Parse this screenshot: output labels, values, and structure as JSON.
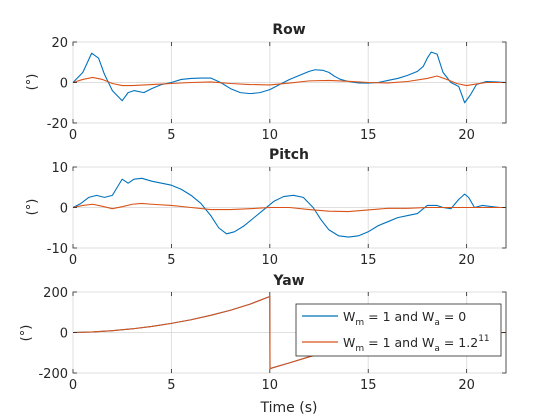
{
  "figure": {
    "xlabel": "Time (s)"
  },
  "colors": {
    "series1": "#0072BD",
    "series2": "#D95319"
  },
  "legend": {
    "placement": "right",
    "entries": [
      {
        "base": "W",
        "sub1": "m",
        "mid": " = 1 and W",
        "sub2": "a",
        "tail": " = 0"
      },
      {
        "base": "W",
        "sub1": "m",
        "mid": " = 1 and W",
        "sub2": "a",
        "tail": " = 1.2",
        "sup": "11"
      }
    ]
  },
  "chart_data": [
    {
      "type": "line",
      "title": "Row",
      "ylabel": "(°)",
      "xlim": [
        0,
        22
      ],
      "ylim": [
        -20,
        20
      ],
      "xticks": [
        0,
        5,
        10,
        15,
        20
      ],
      "yticks": [
        -20,
        0,
        20
      ],
      "grid": true,
      "series": [
        {
          "x": [
            0,
            0.5,
            0.95,
            1.3,
            1.6,
            2.0,
            2.5,
            2.8,
            3.1,
            3.6,
            4.0,
            4.5,
            5.0,
            5.5,
            6.0,
            6.5,
            7.0,
            7.5,
            8.0,
            8.5,
            9.0,
            9.5,
            10.0,
            10.5,
            11.0,
            11.5,
            12.0,
            12.3,
            12.7,
            13.0,
            13.3,
            13.6,
            14.0,
            14.5,
            15.0,
            15.5,
            16.0,
            16.5,
            17.0,
            17.5,
            17.8,
            18.0,
            18.2,
            18.5,
            18.8,
            19.2,
            19.6,
            19.9,
            20.2,
            20.5,
            21.0,
            21.5,
            22.0
          ],
          "values": [
            0,
            5,
            14.5,
            12,
            4,
            -4,
            -9,
            -5,
            -4,
            -5,
            -3,
            -1,
            0,
            1.5,
            2,
            2.2,
            2.2,
            0,
            -3,
            -5,
            -5.5,
            -5,
            -3.5,
            -1,
            1.5,
            3.5,
            5.5,
            6.3,
            6,
            5,
            3,
            1.5,
            0.5,
            -0.2,
            -0.3,
            0,
            1,
            2,
            3.5,
            5.5,
            8,
            12,
            15,
            14,
            5,
            0,
            -2,
            -10,
            -6,
            -1,
            0.5,
            0.3,
            0
          ]
        },
        {
          "x": [
            0,
            0.5,
            1.0,
            1.5,
            2.0,
            2.5,
            3.0,
            4.0,
            5.0,
            6.0,
            7.0,
            8.0,
            9.0,
            10.0,
            11.0,
            12.0,
            13.0,
            14.0,
            15.0,
            16.0,
            17.0,
            18.0,
            18.5,
            19.0,
            19.5,
            20.0,
            20.5,
            21.0,
            22.0
          ],
          "values": [
            0,
            1.5,
            2.5,
            1.5,
            -0.5,
            -1.5,
            -1.5,
            -1,
            -0.5,
            0,
            0.3,
            -0.5,
            -1,
            -1.2,
            -0.3,
            0.8,
            1,
            0.6,
            0,
            -0.2,
            0.5,
            2,
            3.2,
            1.5,
            -0.5,
            -1.5,
            -0.7,
            0,
            0
          ]
        }
      ]
    },
    {
      "type": "line",
      "title": "Pitch",
      "ylabel": "(°)",
      "xlim": [
        0,
        22
      ],
      "ylim": [
        -10,
        10
      ],
      "xticks": [
        0,
        5,
        10,
        15,
        20
      ],
      "yticks": [
        -10,
        0,
        10
      ],
      "grid": true,
      "series": [
        {
          "x": [
            0,
            0.4,
            0.8,
            1.2,
            1.6,
            2.0,
            2.5,
            2.8,
            3.1,
            3.5,
            4.0,
            4.5,
            5.0,
            5.5,
            6.0,
            6.5,
            7.0,
            7.4,
            7.8,
            8.2,
            8.7,
            9.2,
            9.7,
            10.2,
            10.7,
            11.2,
            11.7,
            12.2,
            12.6,
            13.0,
            13.5,
            14.0,
            14.5,
            15.0,
            15.5,
            16.0,
            16.5,
            17.0,
            17.5,
            18.0,
            18.5,
            18.8,
            19.2,
            19.6,
            19.9,
            20.1,
            20.4,
            20.8,
            21.3,
            21.7,
            22.0
          ],
          "values": [
            0,
            1,
            2.5,
            3,
            2.5,
            3,
            7,
            6,
            7,
            7.2,
            6.5,
            6,
            5.5,
            4.5,
            3,
            1,
            -2,
            -5,
            -6.5,
            -6,
            -4.5,
            -2.5,
            -0.5,
            1.5,
            2.7,
            3,
            2.5,
            0,
            -3,
            -5.5,
            -7,
            -7.3,
            -7,
            -6,
            -4.5,
            -3.5,
            -2.5,
            -2,
            -1.5,
            0.5,
            0.5,
            0,
            -0.3,
            2,
            3.3,
            2.5,
            0,
            0.5,
            0.2,
            0,
            0
          ]
        },
        {
          "x": [
            0,
            0.5,
            1.0,
            1.5,
            2.0,
            2.5,
            3.0,
            3.5,
            4.0,
            5.0,
            6.0,
            7.0,
            8.0,
            9.0,
            10.0,
            11.0,
            12.0,
            13.0,
            14.0,
            15.0,
            16.0,
            17.0,
            18.0,
            19.0,
            20.0,
            21.0,
            22.0
          ],
          "values": [
            0,
            0.5,
            0.8,
            0.3,
            -0.3,
            0.2,
            0.8,
            1,
            0.8,
            0.5,
            0,
            -0.5,
            -0.5,
            -0.3,
            0,
            0,
            -0.5,
            -0.9,
            -1,
            -0.6,
            -0.2,
            -0.2,
            0,
            0,
            0,
            0,
            0
          ]
        }
      ]
    },
    {
      "type": "line",
      "title": "Yaw",
      "ylabel": "(°)",
      "xlabel": "Time (s)",
      "xlim": [
        0,
        22
      ],
      "ylim": [
        -200,
        200
      ],
      "xticks": [
        0,
        5,
        10,
        15,
        20
      ],
      "yticks": [
        -200,
        0,
        200
      ],
      "grid": true,
      "series": [
        {
          "x": [
            0,
            1,
            2,
            3,
            4,
            5,
            6,
            7,
            8,
            9,
            10,
            10.01,
            11,
            12,
            13,
            14,
            15,
            16,
            17,
            18,
            19,
            20,
            21,
            22
          ],
          "values": [
            0,
            3,
            9,
            18,
            30,
            45,
            63,
            85,
            110,
            140,
            178,
            -178,
            -150,
            -120,
            -95,
            -70,
            -50,
            -35,
            -22,
            -13,
            -7,
            -3,
            -1,
            0
          ]
        },
        {
          "x": [
            0,
            1,
            2,
            3,
            4,
            5,
            6,
            7,
            8,
            9,
            10,
            10.01,
            11,
            12,
            13,
            14,
            15,
            16,
            17,
            18,
            19,
            20,
            21,
            22
          ],
          "values": [
            0,
            3,
            9,
            18,
            30,
            45,
            63,
            85,
            110,
            140,
            178,
            -178,
            -150,
            -120,
            -95,
            -70,
            -50,
            -35,
            -22,
            -13,
            -7,
            -3,
            -1,
            0
          ]
        }
      ]
    }
  ]
}
